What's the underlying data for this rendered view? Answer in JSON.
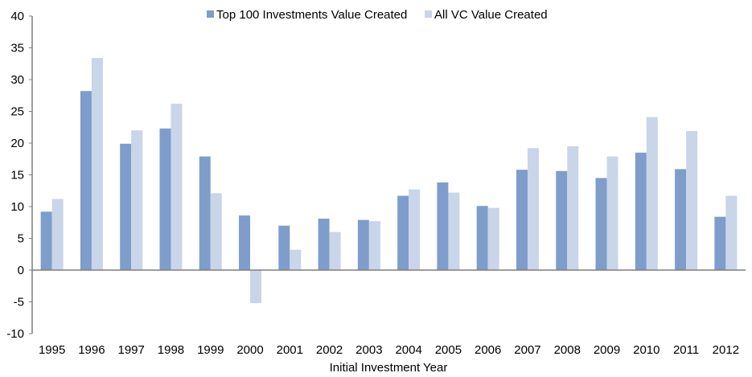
{
  "chart_data": {
    "type": "bar",
    "title": "",
    "xlabel": "Initial Investment Year",
    "ylabel": "",
    "ylim": [
      -10,
      40
    ],
    "yticks": [
      -10,
      -5,
      0,
      5,
      10,
      15,
      20,
      25,
      30,
      35,
      40
    ],
    "grid": false,
    "legend_position": "top-center",
    "categories": [
      "1995",
      "1996",
      "1997",
      "1998",
      "1999",
      "2000",
      "2001",
      "2002",
      "2003",
      "2004",
      "2005",
      "2006",
      "2007",
      "2008",
      "2009",
      "2010",
      "2011",
      "2012"
    ],
    "series": [
      {
        "name": "Top 100 Investments Value Created",
        "color": "#7f9dcb",
        "values": [
          9.2,
          28.2,
          19.9,
          22.3,
          17.9,
          8.6,
          7.0,
          8.1,
          7.9,
          11.7,
          13.8,
          10.1,
          15.8,
          15.6,
          14.5,
          18.5,
          15.9,
          8.4
        ]
      },
      {
        "name": "All VC Value Created",
        "color": "#c9d5e8",
        "values": [
          11.2,
          33.4,
          22.0,
          26.2,
          12.1,
          -5.2,
          3.2,
          6.0,
          7.7,
          12.7,
          12.2,
          9.8,
          19.2,
          19.5,
          17.9,
          24.1,
          21.9,
          11.7
        ]
      }
    ],
    "axis_color": "#7f7f7f"
  }
}
